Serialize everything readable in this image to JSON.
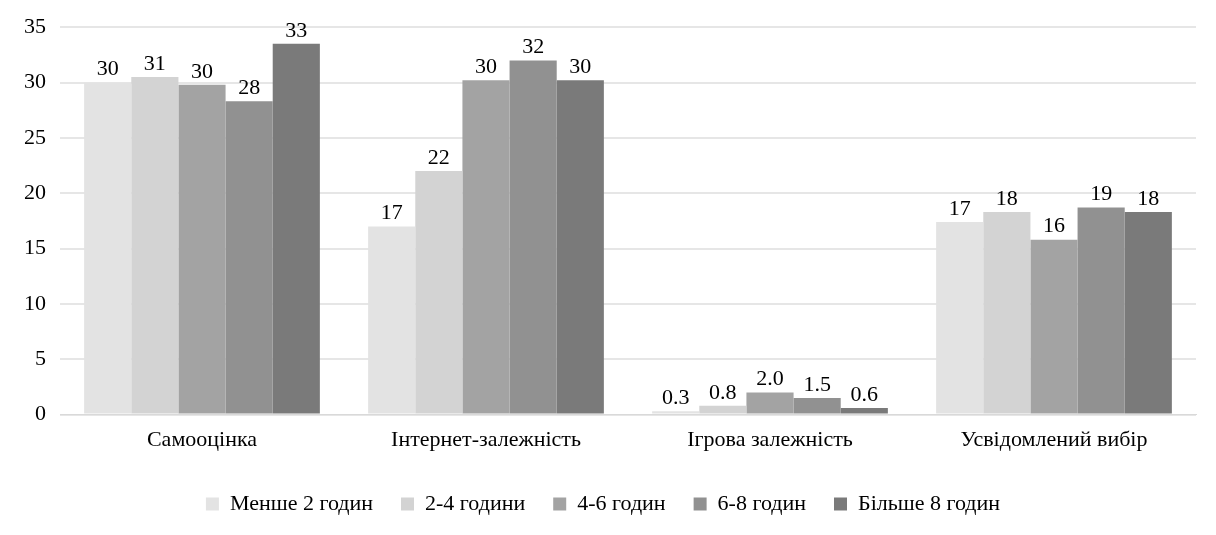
{
  "chart_data": {
    "type": "bar",
    "categories": [
      "Самооцінка",
      "Інтернет-залежність",
      "Ігрова залежність",
      "Усвідомлений вибір"
    ],
    "series": [
      {
        "name": "Менше 2 годин",
        "color": "#e3e3e3",
        "values": [
          30,
          17,
          0.3,
          17.4
        ],
        "value_labels": [
          "30",
          "17",
          "0.3",
          "17"
        ]
      },
      {
        "name": "2-4 години",
        "color": "#d3d3d3",
        "values": [
          30.5,
          22,
          0.8,
          18.3
        ],
        "value_labels": [
          "31",
          "22",
          "0.8",
          "18"
        ]
      },
      {
        "name": "4-6 годин",
        "color": "#a3a3a3",
        "values": [
          29.8,
          30.2,
          2.0,
          15.8
        ],
        "value_labels": [
          "30",
          "30",
          "2.0",
          "16"
        ]
      },
      {
        "name": "6-8 годин",
        "color": "#919191",
        "values": [
          28.3,
          32,
          1.5,
          18.7
        ],
        "value_labels": [
          "28",
          "32",
          "1.5",
          "19"
        ]
      },
      {
        "name": "Більше 8 годин",
        "color": "#7a7a7a",
        "values": [
          33.5,
          30.2,
          0.6,
          18.3
        ],
        "value_labels": [
          "33",
          "30",
          "0.6",
          "18"
        ]
      }
    ],
    "ylim": [
      0,
      35
    ],
    "yticks": [
      0,
      5,
      10,
      15,
      20,
      25,
      30,
      35
    ],
    "grid": "y",
    "legend": "bottom"
  }
}
